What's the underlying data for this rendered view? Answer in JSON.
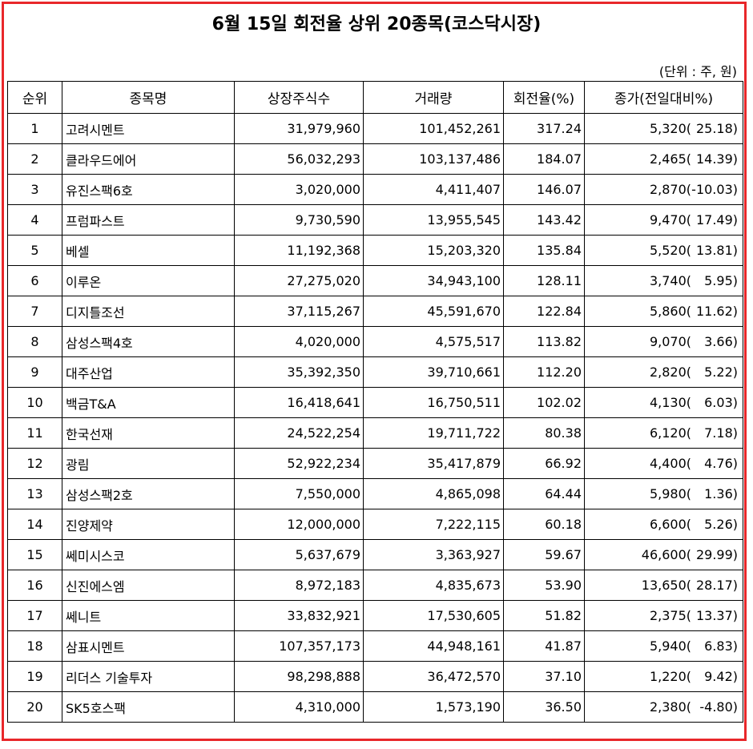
{
  "title": "6월 15일 회전율 상위 20종목(코스닥시장)",
  "unit_note": "(단위 : 주, 원)",
  "headers": [
    "순위",
    "종목명",
    "상장주식수",
    "거래량",
    "회전율(%)",
    "종가(전일대비%)"
  ],
  "rows": [
    {
      "rank": "1",
      "name": "고려시멘트",
      "listed": "31,979,960",
      "volume": "101,452,261",
      "turnover": "317.24",
      "close": "5,320(",
      "change": "25.18)"
    },
    {
      "rank": "2",
      "name": "클라우드에어",
      "listed": "56,032,293",
      "volume": "103,137,486",
      "turnover": "184.07",
      "close": "2,465(",
      "change": "14.39)"
    },
    {
      "rank": "3",
      "name": "유진스팩6호",
      "listed": "3,020,000",
      "volume": "4,411,407",
      "turnover": "146.07",
      "close": "2,870(",
      "change": "-10.03)"
    },
    {
      "rank": "4",
      "name": "프럼파스트",
      "listed": "9,730,590",
      "volume": "13,955,545",
      "turnover": "143.42",
      "close": "9,470(",
      "change": "17.49)"
    },
    {
      "rank": "5",
      "name": "베셀",
      "listed": "11,192,368",
      "volume": "15,203,320",
      "turnover": "135.84",
      "close": "5,520(",
      "change": "13.81)"
    },
    {
      "rank": "6",
      "name": "이루온",
      "listed": "27,275,020",
      "volume": "34,943,100",
      "turnover": "128.11",
      "close": "3,740(",
      "change": "5.95)"
    },
    {
      "rank": "7",
      "name": "디지틀조선",
      "listed": "37,115,267",
      "volume": "45,591,670",
      "turnover": "122.84",
      "close": "5,860(",
      "change": "11.62)"
    },
    {
      "rank": "8",
      "name": "삼성스팩4호",
      "listed": "4,020,000",
      "volume": "4,575,517",
      "turnover": "113.82",
      "close": "9,070(",
      "change": "3.66)"
    },
    {
      "rank": "9",
      "name": "대주산업",
      "listed": "35,392,350",
      "volume": "39,710,661",
      "turnover": "112.20",
      "close": "2,820(",
      "change": "5.22)"
    },
    {
      "rank": "10",
      "name": "백금T&A",
      "listed": "16,418,641",
      "volume": "16,750,511",
      "turnover": "102.02",
      "close": "4,130(",
      "change": "6.03)"
    },
    {
      "rank": "11",
      "name": "한국선재",
      "listed": "24,522,254",
      "volume": "19,711,722",
      "turnover": "80.38",
      "close": "6,120(",
      "change": "7.18)"
    },
    {
      "rank": "12",
      "name": "광림",
      "listed": "52,922,234",
      "volume": "35,417,879",
      "turnover": "66.92",
      "close": "4,400(",
      "change": "4.76)"
    },
    {
      "rank": "13",
      "name": "삼성스팩2호",
      "listed": "7,550,000",
      "volume": "4,865,098",
      "turnover": "64.44",
      "close": "5,980(",
      "change": "1.36)"
    },
    {
      "rank": "14",
      "name": "진양제약",
      "listed": "12,000,000",
      "volume": "7,222,115",
      "turnover": "60.18",
      "close": "6,600(",
      "change": "5.26)"
    },
    {
      "rank": "15",
      "name": "쎄미시스코",
      "listed": "5,637,679",
      "volume": "3,363,927",
      "turnover": "59.67",
      "close": "46,600(",
      "change": "29.99)"
    },
    {
      "rank": "16",
      "name": "신진에스엠",
      "listed": "8,972,183",
      "volume": "4,835,673",
      "turnover": "53.90",
      "close": "13,650(",
      "change": "28.17)"
    },
    {
      "rank": "17",
      "name": "쎄니트",
      "listed": "33,832,921",
      "volume": "17,530,605",
      "turnover": "51.82",
      "close": "2,375(",
      "change": "13.37)"
    },
    {
      "rank": "18",
      "name": "삼표시멘트",
      "listed": "107,357,173",
      "volume": "44,948,161",
      "turnover": "41.87",
      "close": "5,940(",
      "change": "6.83)"
    },
    {
      "rank": "19",
      "name": "리더스 기술투자",
      "listed": "98,298,888",
      "volume": "36,472,570",
      "turnover": "37.10",
      "close": "1,220(",
      "change": "9.42)"
    },
    {
      "rank": "20",
      "name": "SK5호스팩",
      "listed": "4,310,000",
      "volume": "1,573,190",
      "turnover": "36.50",
      "close": "2,380(",
      "change": "-4.80)"
    }
  ]
}
